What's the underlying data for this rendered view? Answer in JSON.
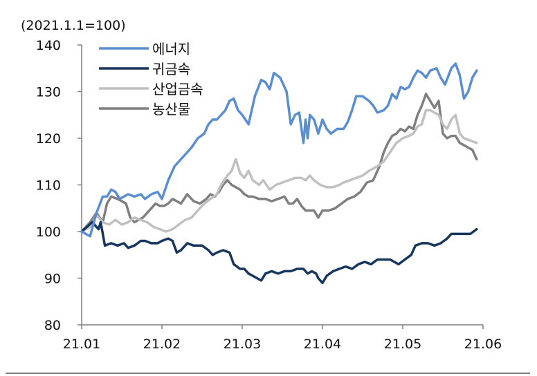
{
  "chart_data": {
    "type": "line",
    "title": "",
    "unit_label": "(2021.1.1=100)",
    "xlabel": "",
    "ylabel": "",
    "ylim": [
      80,
      140
    ],
    "y_ticks": [
      "80",
      "90",
      "100",
      "110",
      "120",
      "130",
      "140"
    ],
    "x_ticks": [
      "21.01",
      "21.02",
      "21.03",
      "21.04",
      "21.05",
      "21.06"
    ],
    "grid": false,
    "legend_position": "top-left",
    "series": [
      {
        "name": "에너지",
        "color": "#5b8ed0",
        "points": [
          [
            0,
            100
          ],
          [
            4,
            99
          ],
          [
            7,
            104
          ],
          [
            10,
            107.5
          ],
          [
            12,
            107.5
          ],
          [
            14,
            109
          ],
          [
            16,
            108.5
          ],
          [
            18,
            107
          ],
          [
            22,
            108
          ],
          [
            25,
            107.5
          ],
          [
            28,
            108
          ],
          [
            30,
            107
          ],
          [
            33,
            108
          ],
          [
            36,
            108.5
          ],
          [
            38,
            107
          ],
          [
            41,
            111
          ],
          [
            44,
            114
          ],
          [
            48,
            116
          ],
          [
            52,
            118
          ],
          [
            55,
            120
          ],
          [
            58,
            121
          ],
          [
            60,
            123
          ],
          [
            62,
            124
          ],
          [
            64,
            124
          ],
          [
            66,
            125
          ],
          [
            68,
            126
          ],
          [
            70,
            128
          ],
          [
            72,
            128.5
          ],
          [
            74,
            126
          ],
          [
            76,
            125
          ],
          [
            79,
            123
          ],
          [
            82,
            129
          ],
          [
            85,
            132.5
          ],
          [
            87,
            132
          ],
          [
            89,
            130.5
          ],
          [
            91,
            134
          ],
          [
            94,
            133
          ],
          [
            97,
            130
          ],
          [
            99,
            123
          ],
          [
            101,
            125
          ],
          [
            103,
            125.5
          ],
          [
            105,
            119
          ],
          [
            106,
            124
          ],
          [
            107,
            120
          ],
          [
            108,
            125
          ],
          [
            110,
            124
          ],
          [
            112,
            121
          ],
          [
            114,
            124
          ],
          [
            116,
            122
          ],
          [
            118,
            121
          ],
          [
            121,
            122
          ],
          [
            124,
            122
          ],
          [
            126,
            123.5
          ],
          [
            128,
            126
          ],
          [
            130,
            129
          ],
          [
            133,
            129
          ],
          [
            136,
            128
          ],
          [
            138,
            127
          ],
          [
            140,
            125.5
          ],
          [
            143,
            126
          ],
          [
            145,
            127
          ],
          [
            147,
            129.5
          ],
          [
            149,
            128.5
          ],
          [
            151,
            131
          ],
          [
            153,
            130.5
          ],
          [
            155,
            131
          ],
          [
            157,
            133
          ],
          [
            159,
            134.5
          ],
          [
            161,
            134
          ],
          [
            163,
            133
          ],
          [
            165,
            134.5
          ],
          [
            168,
            135
          ],
          [
            170,
            133
          ],
          [
            172,
            131.5
          ],
          [
            175,
            135
          ],
          [
            177,
            136
          ],
          [
            179,
            133.5
          ],
          [
            181,
            128.5
          ],
          [
            183,
            130
          ],
          [
            185,
            133
          ],
          [
            187,
            134.5
          ]
        ]
      },
      {
        "name": "귀금속",
        "color": "#17365d",
        "points": [
          [
            0,
            100
          ],
          [
            5,
            102
          ],
          [
            8,
            100.5
          ],
          [
            9,
            102
          ],
          [
            11,
            97
          ],
          [
            14,
            97.5
          ],
          [
            17,
            97
          ],
          [
            20,
            97.5
          ],
          [
            22,
            96.5
          ],
          [
            25,
            97
          ],
          [
            28,
            98
          ],
          [
            30,
            98
          ],
          [
            33,
            97.5
          ],
          [
            36,
            97.5
          ],
          [
            38,
            98
          ],
          [
            41,
            98.5
          ],
          [
            43,
            98
          ],
          [
            45,
            95.5
          ],
          [
            47,
            96
          ],
          [
            50,
            97.5
          ],
          [
            53,
            97
          ],
          [
            57,
            97
          ],
          [
            60,
            96
          ],
          [
            62,
            95
          ],
          [
            64,
            95.5
          ],
          [
            67,
            96
          ],
          [
            70,
            95.5
          ],
          [
            72,
            93
          ],
          [
            75,
            92
          ],
          [
            77,
            92
          ],
          [
            79,
            91
          ],
          [
            81,
            90.5
          ],
          [
            83,
            90
          ],
          [
            85,
            89.5
          ],
          [
            87,
            91
          ],
          [
            90,
            91.5
          ],
          [
            93,
            91
          ],
          [
            96,
            91.5
          ],
          [
            99,
            91.5
          ],
          [
            102,
            92
          ],
          [
            105,
            92
          ],
          [
            107,
            91
          ],
          [
            109,
            91.5
          ],
          [
            111,
            91
          ],
          [
            112,
            90
          ],
          [
            114,
            89
          ],
          [
            116,
            90.5
          ],
          [
            119,
            91.5
          ],
          [
            122,
            92
          ],
          [
            125,
            92.5
          ],
          [
            128,
            92
          ],
          [
            131,
            93
          ],
          [
            134,
            93.5
          ],
          [
            137,
            93
          ],
          [
            140,
            94
          ],
          [
            143,
            94
          ],
          [
            146,
            94
          ],
          [
            148,
            93.5
          ],
          [
            150,
            93
          ],
          [
            153,
            94
          ],
          [
            156,
            95
          ],
          [
            158,
            97
          ],
          [
            161,
            97.5
          ],
          [
            164,
            97.5
          ],
          [
            167,
            97
          ],
          [
            170,
            97.5
          ],
          [
            173,
            98.5
          ],
          [
            175,
            99.5
          ],
          [
            177,
            99.5
          ],
          [
            179,
            99.5
          ],
          [
            181,
            99.5
          ],
          [
            184,
            99.5
          ],
          [
            187,
            100.5
          ]
        ]
      },
      {
        "name": "산업금속",
        "color": "#c0c0c0",
        "points": [
          [
            0,
            100
          ],
          [
            4,
            101
          ],
          [
            7,
            103.5
          ],
          [
            10,
            102
          ],
          [
            13,
            101.5
          ],
          [
            16,
            102.5
          ],
          [
            19,
            101.5
          ],
          [
            22,
            102
          ],
          [
            25,
            103
          ],
          [
            28,
            102.5
          ],
          [
            31,
            102
          ],
          [
            34,
            101
          ],
          [
            37,
            100.5
          ],
          [
            40,
            100
          ],
          [
            43,
            100.5
          ],
          [
            46,
            101.5
          ],
          [
            49,
            102.5
          ],
          [
            52,
            103
          ],
          [
            55,
            104.5
          ],
          [
            58,
            106
          ],
          [
            61,
            107
          ],
          [
            64,
            108
          ],
          [
            66,
            110
          ],
          [
            69,
            112
          ],
          [
            71,
            113
          ],
          [
            73,
            115.5
          ],
          [
            75,
            112.5
          ],
          [
            77,
            111.5
          ],
          [
            79,
            113
          ],
          [
            81,
            111
          ],
          [
            84,
            110
          ],
          [
            86,
            111
          ],
          [
            89,
            109
          ],
          [
            92,
            110
          ],
          [
            95,
            110.5
          ],
          [
            98,
            111
          ],
          [
            101,
            111.5
          ],
          [
            104,
            111.5
          ],
          [
            106,
            111
          ],
          [
            108,
            112
          ],
          [
            110,
            111
          ],
          [
            113,
            110
          ],
          [
            116,
            109.5
          ],
          [
            119,
            109.5
          ],
          [
            122,
            110
          ],
          [
            124,
            110.5
          ],
          [
            127,
            111
          ],
          [
            130,
            111.5
          ],
          [
            133,
            112
          ],
          [
            136,
            113
          ],
          [
            138,
            113.5
          ],
          [
            140,
            114
          ],
          [
            143,
            115
          ],
          [
            146,
            117
          ],
          [
            149,
            119
          ],
          [
            152,
            120
          ],
          [
            155,
            120.5
          ],
          [
            157,
            121
          ],
          [
            159,
            122.5
          ],
          [
            161,
            123
          ],
          [
            163,
            126
          ],
          [
            165,
            126
          ],
          [
            167,
            125.5
          ],
          [
            169,
            125
          ],
          [
            171,
            123
          ],
          [
            173,
            122
          ],
          [
            175,
            124
          ],
          [
            177,
            125
          ],
          [
            179,
            121
          ],
          [
            181,
            120
          ],
          [
            184,
            119.5
          ],
          [
            187,
            119
          ]
        ]
      },
      {
        "name": "농산물",
        "color": "#7f7f7f",
        "points": [
          [
            0,
            100
          ],
          [
            4,
            102
          ],
          [
            7,
            104
          ],
          [
            10,
            102
          ],
          [
            12,
            106
          ],
          [
            14,
            107.5
          ],
          [
            17,
            107
          ],
          [
            19,
            106.5
          ],
          [
            21,
            106
          ],
          [
            23,
            103
          ],
          [
            25,
            102
          ],
          [
            27,
            102.5
          ],
          [
            29,
            103
          ],
          [
            31,
            104
          ],
          [
            33,
            105
          ],
          [
            35,
            106
          ],
          [
            37,
            105.5
          ],
          [
            39,
            105.5
          ],
          [
            41,
            106
          ],
          [
            43,
            107
          ],
          [
            45,
            106.5
          ],
          [
            47,
            106
          ],
          [
            50,
            108
          ],
          [
            53,
            106.5
          ],
          [
            56,
            106
          ],
          [
            59,
            107
          ],
          [
            61,
            108
          ],
          [
            63,
            107.5
          ],
          [
            65,
            108.5
          ],
          [
            67,
            110
          ],
          [
            69,
            111
          ],
          [
            71,
            110
          ],
          [
            73,
            109.5
          ],
          [
            75,
            109
          ],
          [
            77,
            108
          ],
          [
            79,
            107.5
          ],
          [
            81,
            107.5
          ],
          [
            84,
            107
          ],
          [
            87,
            107
          ],
          [
            90,
            106.5
          ],
          [
            93,
            107
          ],
          [
            96,
            107.5
          ],
          [
            98,
            106
          ],
          [
            100,
            106
          ],
          [
            102,
            107
          ],
          [
            104,
            105.5
          ],
          [
            106,
            104.5
          ],
          [
            108,
            104.5
          ],
          [
            110,
            104.5
          ],
          [
            112,
            103
          ],
          [
            114,
            104.5
          ],
          [
            117,
            104.5
          ],
          [
            120,
            105
          ],
          [
            123,
            106
          ],
          [
            126,
            107
          ],
          [
            129,
            107.5
          ],
          [
            132,
            108.5
          ],
          [
            135,
            110.5
          ],
          [
            138,
            111
          ],
          [
            141,
            114
          ],
          [
            143,
            117
          ],
          [
            145,
            119
          ],
          [
            147,
            120.5
          ],
          [
            149,
            121
          ],
          [
            151,
            122
          ],
          [
            153,
            121.5
          ],
          [
            155,
            122.5
          ],
          [
            157,
            122
          ],
          [
            159,
            125
          ],
          [
            161,
            127
          ],
          [
            163,
            129.5
          ],
          [
            165,
            128
          ],
          [
            167,
            126.5
          ],
          [
            169,
            128
          ],
          [
            171,
            121
          ],
          [
            173,
            120
          ],
          [
            175,
            120.5
          ],
          [
            177,
            120.5
          ],
          [
            179,
            119
          ],
          [
            181,
            118.5
          ],
          [
            183,
            118
          ],
          [
            185,
            117.5
          ],
          [
            187,
            115.5
          ]
        ]
      }
    ]
  }
}
